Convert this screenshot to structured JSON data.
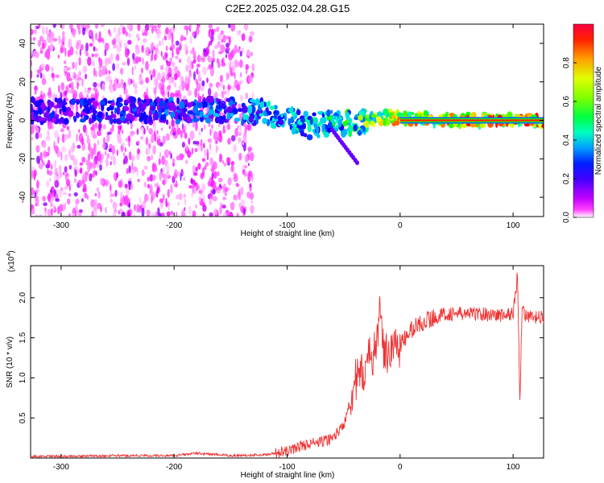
{
  "title": "C2E2.2025.032.04.28.G15",
  "chart_data": [
    {
      "type": "heatmap",
      "xlabel": "Height of straight line (km)",
      "ylabel": "Frequency (Hz)",
      "xlim": [
        -327,
        127
      ],
      "ylim": [
        -50,
        50
      ],
      "xticks": [
        -300,
        -200,
        -100,
        0,
        100
      ],
      "xtick_labels": [
        "-300",
        "-200",
        "-100",
        "0",
        "100"
      ],
      "yticks": [
        -40,
        -20,
        0,
        20,
        40
      ],
      "ytick_labels": [
        "-40",
        "-20",
        "0",
        "20",
        "40"
      ],
      "colorbar": {
        "label": "Normalized spectral amplitude",
        "range": [
          0,
          1
        ],
        "ticks": [
          0.0,
          0.2,
          0.4,
          0.6,
          0.8
        ],
        "tick_labels": [
          "0.0",
          "0.2",
          "0.4",
          "0.6",
          "0.8"
        ],
        "colormap": [
          "#ffffff",
          "#ff00ff",
          "#8000ff",
          "#0000ff",
          "#00bfff",
          "#00ffbf",
          "#00ff00",
          "#bfff00",
          "#ffff00",
          "#ff8000",
          "#ff0000"
        ]
      },
      "ridge": {
        "x": [
          -327,
          -300,
          -250,
          -200,
          -150,
          -120,
          -100,
          -80,
          -60,
          -40,
          -30,
          -20,
          -10,
          0,
          50,
          100,
          127
        ],
        "frequency": [
          5,
          5,
          5,
          5,
          5,
          4,
          1,
          -3,
          -1,
          -2,
          0,
          1,
          2,
          1,
          0,
          0,
          0
        ],
        "amplitude": [
          0.3,
          0.3,
          0.32,
          0.35,
          0.4,
          0.45,
          0.5,
          0.5,
          0.55,
          0.6,
          0.7,
          0.75,
          0.8,
          0.9,
          0.97,
          0.97,
          0.97
        ]
      },
      "diffuse_region_x": [
        -327,
        -130
      ],
      "tail": {
        "x": [
          -60,
          -38
        ],
        "frequency": [
          -5,
          -22
        ]
      },
      "grid": false
    },
    {
      "type": "line",
      "xlabel": "Height of straight line (km)",
      "ylabel": "SNR (10 * v/v)",
      "multiplier_label": "(x10",
      "multiplier_exp": "4",
      "xlim": [
        -327,
        127
      ],
      "ylim": [
        0,
        2.4
      ],
      "xticks": [
        -300,
        -200,
        -100,
        0,
        100
      ],
      "xtick_labels": [
        "-300",
        "-200",
        "-100",
        "0",
        "100"
      ],
      "yticks": [
        0.5,
        1.0,
        1.5,
        2.0
      ],
      "ytick_labels": [
        "0.5",
        "1.0",
        "1.5",
        "2.0"
      ],
      "color": "#ee3333",
      "grid": false,
      "series": [
        {
          "x": [
            -327,
            -300,
            -250,
            -200,
            -180,
            -150,
            -120,
            -100,
            -90,
            -80,
            -70,
            -60,
            -50,
            -45,
            -40,
            -35,
            -30,
            -25,
            -20,
            -18,
            -16,
            -14,
            -10,
            -5,
            0,
            5,
            10,
            20,
            30,
            40,
            50,
            70,
            90,
            100,
            104,
            106,
            108,
            112,
            120,
            127
          ],
          "values": [
            0.02,
            0.02,
            0.03,
            0.03,
            0.06,
            0.03,
            0.04,
            0.08,
            0.14,
            0.18,
            0.2,
            0.25,
            0.4,
            0.7,
            0.95,
            1.0,
            1.15,
            1.3,
            1.4,
            2.25,
            1.4,
            1.3,
            1.35,
            1.4,
            1.4,
            1.5,
            1.6,
            1.7,
            1.75,
            1.8,
            1.8,
            1.8,
            1.78,
            1.8,
            2.3,
            0.7,
            1.9,
            1.75,
            1.75,
            1.75
          ]
        }
      ]
    }
  ]
}
